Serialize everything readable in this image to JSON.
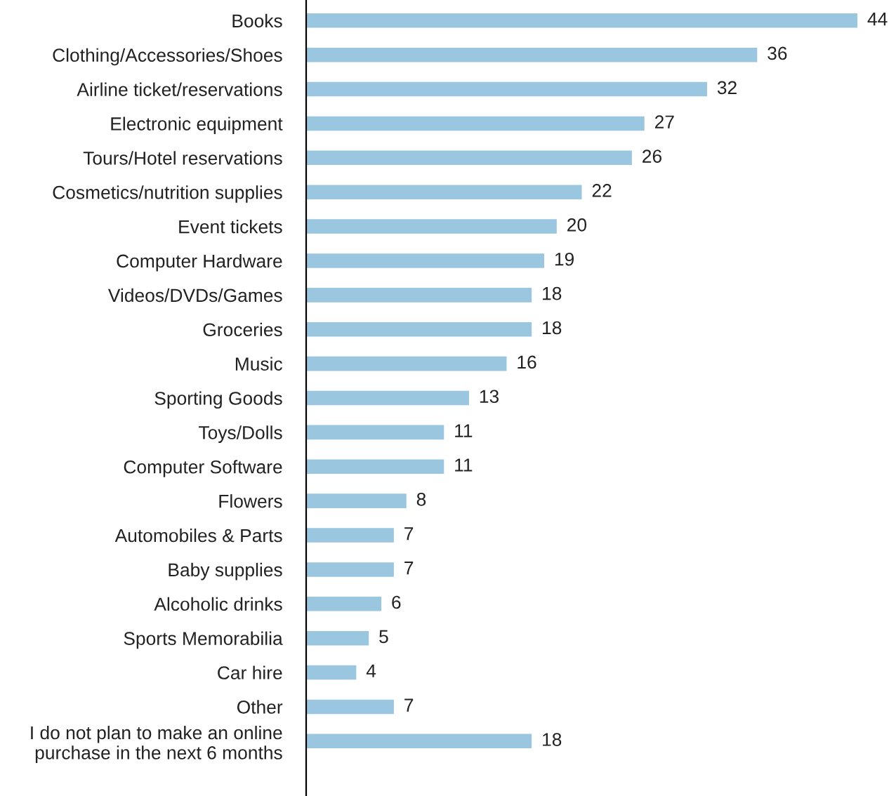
{
  "chart_data": {
    "type": "bar",
    "orientation": "horizontal",
    "categories": [
      "Books",
      "Clothing/Accessories/Shoes",
      "Airline ticket/reservations",
      "Electronic equipment",
      "Tours/Hotel reservations",
      "Cosmetics/nutrition supplies",
      "Event tickets",
      "Computer Hardware",
      "Videos/DVDs/Games",
      "Groceries",
      "Music",
      "Sporting Goods",
      "Toys/Dolls",
      "Computer Software",
      "Flowers",
      "Automobiles & Parts",
      "Baby supplies",
      "Alcoholic drinks",
      "Sports Memorabilia",
      "Car hire",
      "Other",
      "I do not plan to make an online\npurchase in the next 6 months"
    ],
    "values": [
      44,
      36,
      32,
      27,
      26,
      22,
      20,
      19,
      18,
      18,
      16,
      13,
      11,
      11,
      8,
      7,
      7,
      6,
      5,
      4,
      7,
      18
    ],
    "color": "#9ac6e0",
    "tick_labels": "y",
    "data_labels": true,
    "grid": false,
    "legend": false
  }
}
